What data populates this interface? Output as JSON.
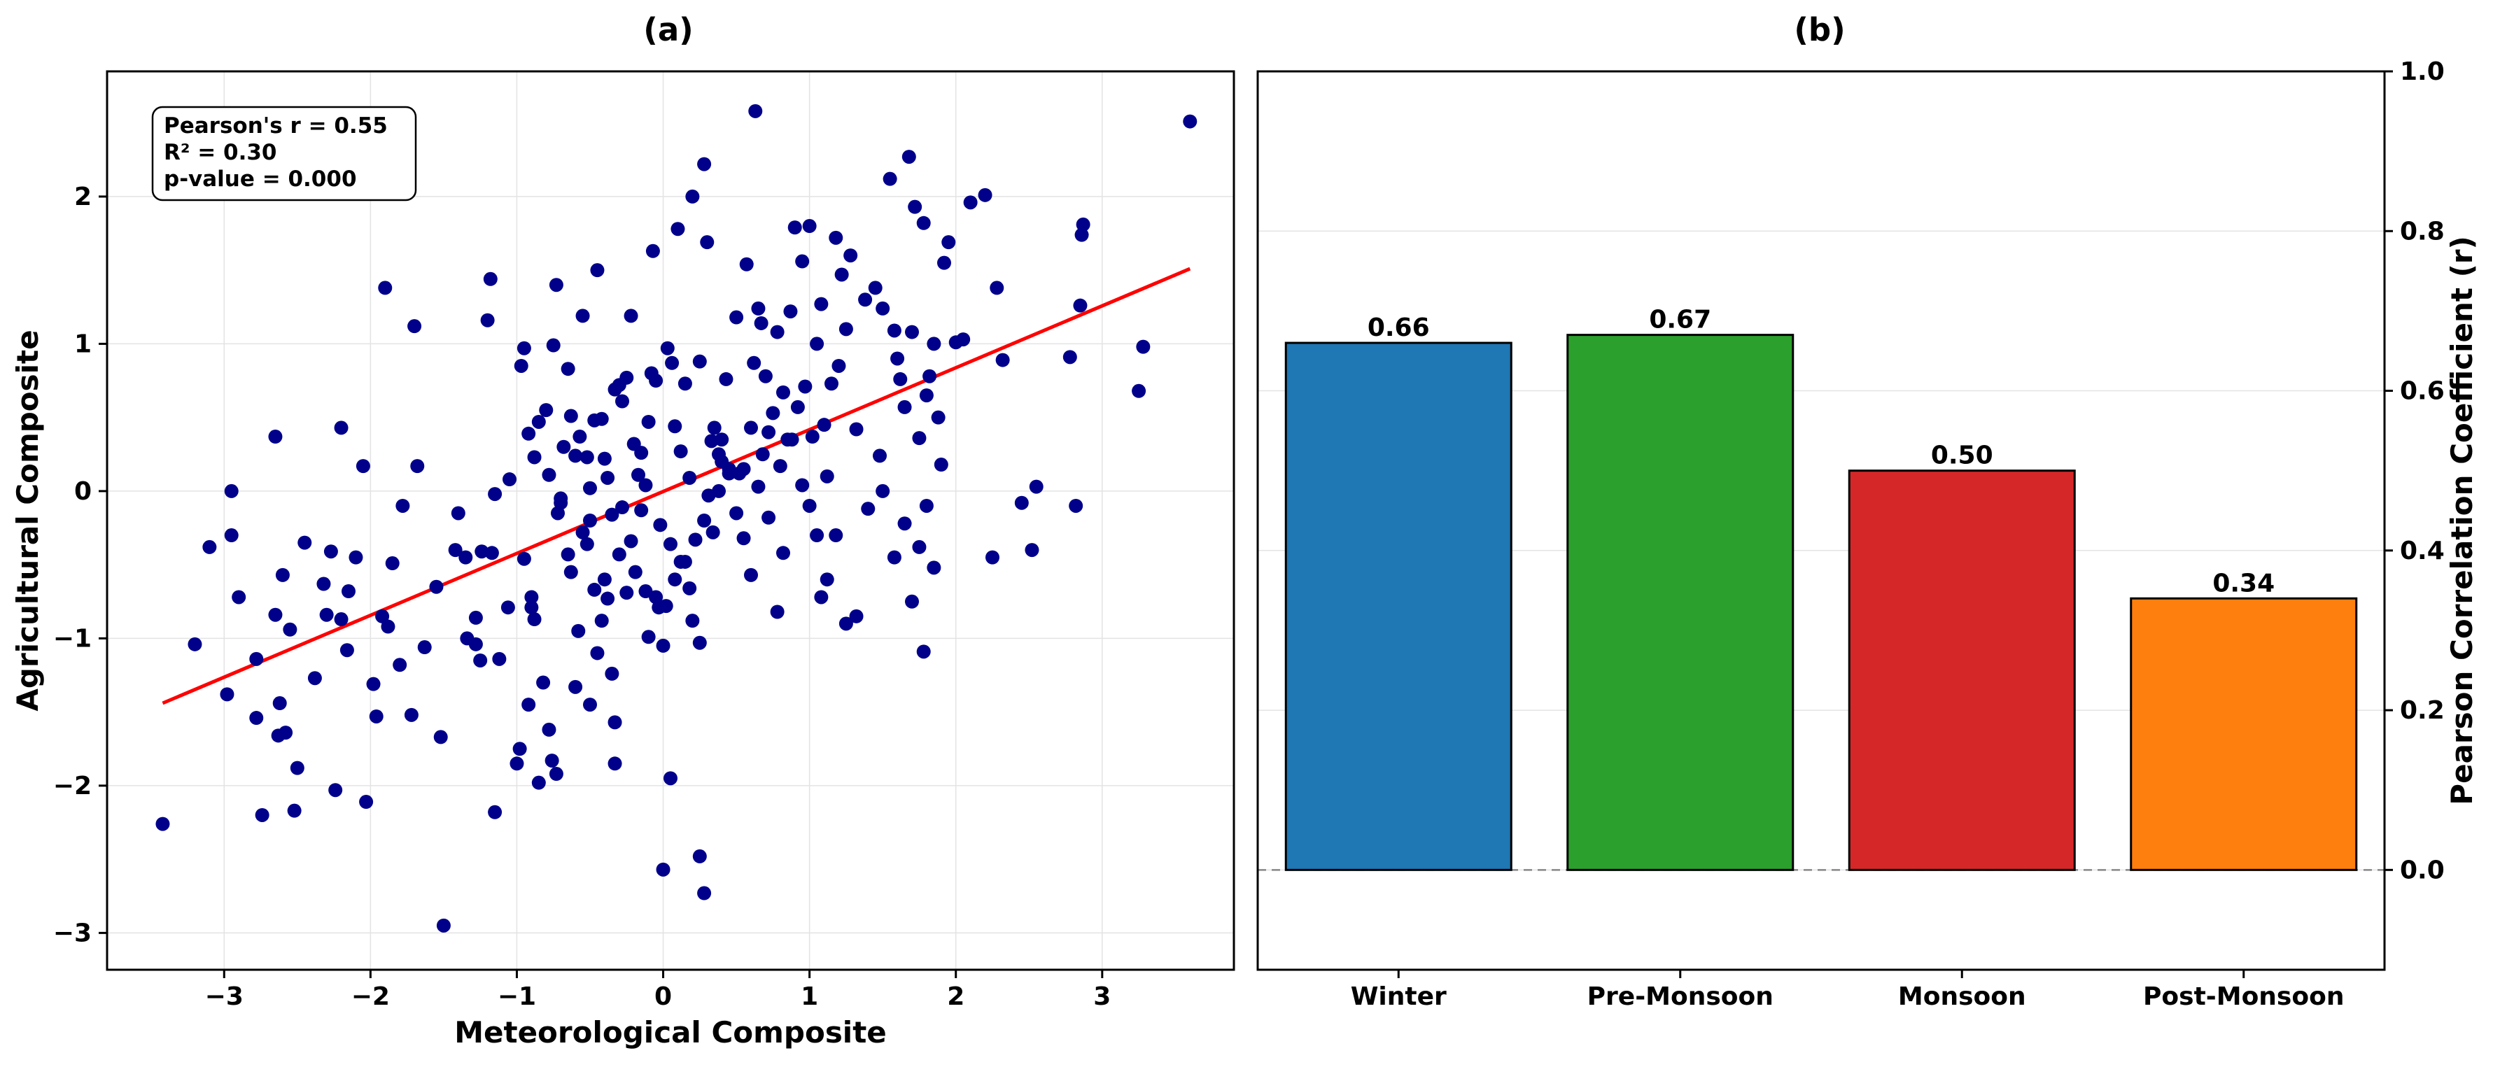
{
  "chart_data": [
    {
      "type": "scatter",
      "title": "(a)",
      "xlabel": "Meteorological Composite",
      "ylabel": "Agricultural Composite",
      "xlim": [
        -3.8,
        3.9
      ],
      "ylim": [
        -3.25,
        2.85
      ],
      "xticks": [
        -3,
        -2,
        -1,
        0,
        1,
        2,
        3
      ],
      "yticks": [
        -3,
        -2,
        -1,
        0,
        1,
        2
      ],
      "grid": true,
      "point_color": "#00008b",
      "fit_color": "#ff0000",
      "fit_line": {
        "x": [
          -3.42,
          3.6
        ],
        "y": [
          -1.44,
          1.51
        ]
      },
      "stats": {
        "r_text": "Pearson's r = 0.55",
        "r2_text": "R² = 0.30",
        "p_text": "p-value = 0.000"
      },
      "points": [
        [
          -3.42,
          -2.26
        ],
        [
          -3.2,
          -1.04
        ],
        [
          -3.1,
          -0.38
        ],
        [
          -2.95,
          -0.3
        ],
        [
          -2.98,
          -1.38
        ],
        [
          -2.9,
          -0.72
        ],
        [
          -2.78,
          -1.14
        ],
        [
          -2.78,
          -1.54
        ],
        [
          -2.74,
          -2.2
        ],
        [
          -2.65,
          -0.84
        ],
        [
          -2.62,
          -1.44
        ],
        [
          -2.63,
          -1.66
        ],
        [
          -2.6,
          -0.57
        ],
        [
          -2.58,
          -1.64
        ],
        [
          -2.55,
          -0.94
        ],
        [
          -2.52,
          -2.17
        ],
        [
          -2.45,
          -0.35
        ],
        [
          -2.5,
          -1.88
        ],
        [
          -2.38,
          -1.27
        ],
        [
          -2.32,
          -0.63
        ],
        [
          -2.3,
          -0.84
        ],
        [
          -2.27,
          -0.41
        ],
        [
          -2.24,
          -2.03
        ],
        [
          -2.2,
          -0.87
        ],
        [
          -2.15,
          -0.68
        ],
        [
          -2.16,
          -1.08
        ],
        [
          -2.1,
          -0.45
        ],
        [
          -2.03,
          -2.11
        ],
        [
          -1.98,
          -1.31
        ],
        [
          -1.96,
          -1.53
        ],
        [
          -1.92,
          -0.85
        ],
        [
          -1.88,
          -0.92
        ],
        [
          -1.85,
          -0.49
        ],
        [
          -1.8,
          -1.18
        ],
        [
          -1.72,
          -1.52
        ],
        [
          -1.63,
          -1.06
        ],
        [
          -1.55,
          -0.65
        ],
        [
          -1.52,
          -1.67
        ],
        [
          -1.4,
          -0.15
        ],
        [
          -1.34,
          -1.0
        ],
        [
          -1.28,
          -0.86
        ],
        [
          -1.25,
          -1.15
        ],
        [
          -1.24,
          -0.41
        ],
        [
          -1.17,
          -0.42
        ],
        [
          -1.12,
          -1.14
        ],
        [
          -1.06,
          -0.79
        ],
        [
          -0.98,
          -1.75
        ],
        [
          -0.95,
          -0.46
        ],
        [
          -0.92,
          -1.45
        ],
        [
          -0.9,
          -0.72
        ],
        [
          -0.9,
          -0.79
        ],
        [
          -0.88,
          -0.87
        ],
        [
          -0.82,
          -1.3
        ],
        [
          -0.78,
          -1.62
        ],
        [
          -0.76,
          -1.83
        ],
        [
          -0.73,
          -1.92
        ],
        [
          -0.72,
          -0.15
        ],
        [
          -0.7,
          -0.05
        ],
        [
          -0.65,
          -0.43
        ],
        [
          -0.63,
          -0.55
        ],
        [
          -0.6,
          -1.33
        ],
        [
          -0.58,
          -0.95
        ],
        [
          -0.55,
          -0.28
        ],
        [
          -0.52,
          -0.36
        ],
        [
          -0.5,
          -0.2
        ],
        [
          -0.47,
          -0.67
        ],
        [
          -0.45,
          -1.1
        ],
        [
          -0.42,
          -0.88
        ],
        [
          -0.4,
          -0.6
        ],
        [
          -0.38,
          -0.73
        ],
        [
          -0.35,
          -1.24
        ],
        [
          -0.33,
          -1.57
        ],
        [
          -0.3,
          -0.43
        ],
        [
          -0.28,
          -0.11
        ],
        [
          -0.25,
          -0.69
        ],
        [
          -0.22,
          -0.34
        ],
        [
          -0.19,
          -0.55
        ],
        [
          -0.15,
          -0.13
        ],
        [
          -0.12,
          -0.68
        ],
        [
          -0.1,
          -0.99
        ],
        [
          -0.05,
          -0.72
        ],
        [
          -0.03,
          -0.79
        ],
        [
          0.0,
          -1.05
        ],
        [
          0.02,
          -0.78
        ],
        [
          0.05,
          -0.36
        ],
        [
          0.08,
          -0.6
        ],
        [
          0.12,
          -0.48
        ],
        [
          0.15,
          -0.48
        ],
        [
          0.18,
          -0.66
        ],
        [
          0.2,
          -0.88
        ],
        [
          0.22,
          -0.33
        ],
        [
          0.25,
          -1.03
        ],
        [
          0.28,
          -0.2
        ],
        [
          0.31,
          -0.03
        ],
        [
          0.34,
          -0.28
        ],
        [
          0.38,
          0.0
        ],
        [
          0.4,
          0.35
        ],
        [
          0.45,
          0.12
        ],
        [
          0.5,
          -0.15
        ],
        [
          0.55,
          -0.32
        ],
        [
          0.6,
          -0.57
        ],
        [
          0.65,
          0.03
        ],
        [
          0.72,
          -0.18
        ],
        [
          0.78,
          -0.82
        ],
        [
          0.82,
          -0.42
        ],
        [
          0.88,
          0.35
        ],
        [
          0.95,
          0.04
        ],
        [
          1.0,
          -0.1
        ],
        [
          1.05,
          -0.3
        ],
        [
          1.08,
          -0.72
        ],
        [
          1.12,
          -0.6
        ],
        [
          1.18,
          -0.3
        ],
        [
          1.25,
          -0.9
        ],
        [
          1.32,
          -0.85
        ],
        [
          1.4,
          -0.12
        ],
        [
          1.5,
          0.0
        ],
        [
          1.58,
          -0.45
        ],
        [
          1.65,
          -0.22
        ],
        [
          1.7,
          -0.75
        ],
        [
          1.75,
          -0.38
        ],
        [
          1.78,
          -1.09
        ],
        [
          1.8,
          -0.1
        ],
        [
          1.85,
          -0.52
        ],
        [
          1.9,
          0.18
        ],
        [
          -1.28,
          -1.04
        ],
        [
          -1.15,
          -2.18
        ],
        [
          -1.0,
          -1.85
        ],
        [
          -0.85,
          -1.98
        ],
        [
          -0.5,
          -1.45
        ],
        [
          -0.33,
          -1.85
        ],
        [
          0.05,
          -1.95
        ],
        [
          0.0,
          -2.57
        ],
        [
          0.25,
          -2.48
        ],
        [
          0.28,
          -2.73
        ],
        [
          -1.5,
          -2.95
        ],
        [
          -2.95,
          0.0
        ],
        [
          -2.65,
          0.37
        ],
        [
          -2.2,
          0.43
        ],
        [
          -2.05,
          0.17
        ],
        [
          -1.9,
          1.38
        ],
        [
          -1.7,
          1.12
        ],
        [
          -1.68,
          0.17
        ],
        [
          -1.78,
          -0.1
        ],
        [
          -1.42,
          -0.4
        ],
        [
          -1.35,
          -0.45
        ],
        [
          -1.2,
          1.16
        ],
        [
          -1.18,
          1.44
        ],
        [
          -1.15,
          -0.02
        ],
        [
          -1.05,
          0.08
        ],
        [
          -0.97,
          0.85
        ],
        [
          -0.95,
          0.97
        ],
        [
          -0.92,
          0.39
        ],
        [
          -0.88,
          0.23
        ],
        [
          -0.85,
          0.47
        ],
        [
          -0.8,
          0.55
        ],
        [
          -0.78,
          0.11
        ],
        [
          -0.75,
          0.99
        ],
        [
          -0.73,
          1.4
        ],
        [
          -0.7,
          -0.08
        ],
        [
          -0.68,
          0.3
        ],
        [
          -0.65,
          0.83
        ],
        [
          -0.63,
          0.51
        ],
        [
          -0.6,
          0.24
        ],
        [
          -0.57,
          0.37
        ],
        [
          -0.55,
          1.19
        ],
        [
          -0.52,
          0.23
        ],
        [
          -0.5,
          0.02
        ],
        [
          -0.47,
          0.48
        ],
        [
          -0.45,
          1.5
        ],
        [
          -0.42,
          0.49
        ],
        [
          -0.4,
          0.22
        ],
        [
          -0.38,
          0.09
        ],
        [
          -0.35,
          -0.16
        ],
        [
          -0.33,
          0.69
        ],
        [
          -0.3,
          0.72
        ],
        [
          -0.28,
          0.61
        ],
        [
          -0.25,
          0.77
        ],
        [
          -0.22,
          1.19
        ],
        [
          -0.2,
          0.32
        ],
        [
          -0.17,
          0.11
        ],
        [
          -0.15,
          0.26
        ],
        [
          -0.12,
          0.04
        ],
        [
          -0.1,
          0.47
        ],
        [
          -0.08,
          0.8
        ],
        [
          -0.05,
          0.75
        ],
        [
          -0.07,
          1.63
        ],
        [
          -0.02,
          -0.23
        ],
        [
          0.03,
          0.97
        ],
        [
          0.06,
          0.87
        ],
        [
          0.08,
          0.44
        ],
        [
          0.1,
          1.78
        ],
        [
          0.12,
          0.27
        ],
        [
          0.15,
          0.73
        ],
        [
          0.18,
          0.09
        ],
        [
          0.2,
          2.0
        ],
        [
          0.25,
          0.88
        ],
        [
          0.28,
          2.22
        ],
        [
          0.3,
          1.69
        ],
        [
          0.33,
          0.34
        ],
        [
          0.35,
          0.43
        ],
        [
          0.38,
          0.25
        ],
        [
          0.4,
          0.2
        ],
        [
          0.43,
          0.76
        ],
        [
          0.45,
          0.15
        ],
        [
          0.5,
          1.18
        ],
        [
          0.52,
          0.12
        ],
        [
          0.55,
          0.15
        ],
        [
          0.57,
          1.54
        ],
        [
          0.6,
          0.43
        ],
        [
          0.62,
          0.87
        ],
        [
          0.63,
          2.58
        ],
        [
          0.65,
          1.24
        ],
        [
          0.67,
          1.14
        ],
        [
          0.68,
          0.25
        ],
        [
          0.7,
          0.78
        ],
        [
          0.72,
          0.4
        ],
        [
          0.75,
          0.53
        ],
        [
          0.78,
          1.08
        ],
        [
          0.8,
          0.17
        ],
        [
          0.82,
          0.67
        ],
        [
          0.85,
          0.35
        ],
        [
          0.87,
          1.22
        ],
        [
          0.9,
          1.79
        ],
        [
          0.92,
          0.57
        ],
        [
          0.95,
          1.56
        ],
        [
          0.97,
          0.71
        ],
        [
          1.0,
          1.8
        ],
        [
          1.02,
          0.37
        ],
        [
          1.05,
          1.0
        ],
        [
          1.08,
          1.27
        ],
        [
          1.1,
          0.45
        ],
        [
          1.12,
          0.1
        ],
        [
          1.15,
          0.73
        ],
        [
          1.18,
          1.72
        ],
        [
          1.2,
          0.85
        ],
        [
          1.22,
          1.47
        ],
        [
          1.25,
          1.1
        ],
        [
          1.28,
          1.6
        ],
        [
          1.32,
          0.42
        ],
        [
          1.38,
          1.3
        ],
        [
          1.45,
          1.38
        ],
        [
          1.48,
          0.24
        ],
        [
          1.5,
          1.24
        ],
        [
          1.55,
          2.12
        ],
        [
          1.58,
          1.09
        ],
        [
          1.6,
          0.9
        ],
        [
          1.62,
          0.76
        ],
        [
          1.65,
          0.57
        ],
        [
          1.68,
          2.27
        ],
        [
          1.7,
          1.08
        ],
        [
          1.72,
          1.93
        ],
        [
          1.75,
          0.36
        ],
        [
          1.78,
          1.82
        ],
        [
          1.8,
          0.65
        ],
        [
          1.82,
          0.78
        ],
        [
          1.85,
          1.0
        ],
        [
          1.88,
          0.5
        ],
        [
          1.92,
          1.55
        ],
        [
          1.95,
          1.69
        ],
        [
          2.0,
          1.01
        ],
        [
          2.05,
          1.03
        ],
        [
          2.1,
          1.96
        ],
        [
          2.2,
          2.01
        ],
        [
          2.28,
          1.38
        ],
        [
          2.32,
          0.89
        ],
        [
          2.25,
          -0.45
        ],
        [
          2.45,
          -0.08
        ],
        [
          2.52,
          -0.4
        ],
        [
          2.55,
          0.03
        ],
        [
          2.78,
          0.91
        ],
        [
          2.82,
          -0.1
        ],
        [
          2.85,
          1.26
        ],
        [
          2.87,
          1.81
        ],
        [
          2.86,
          1.74
        ],
        [
          3.25,
          0.68
        ],
        [
          3.28,
          0.98
        ],
        [
          3.6,
          2.51
        ]
      ]
    },
    {
      "type": "bar",
      "title": "(b)",
      "xlabel": "",
      "ylabel": "Pearson Correlation Coefficient (r)",
      "ylim": [
        -0.125,
        1.0
      ],
      "yticks": [
        0.0,
        0.2,
        0.4,
        0.6,
        0.8,
        1.0
      ],
      "ytick_labels": [
        "0.0",
        "0.2",
        "0.4",
        "0.6",
        "0.8",
        "1.0"
      ],
      "yaxis_side": "right",
      "grid": true,
      "zero_line": true,
      "categories": [
        "Winter",
        "Pre-Monsoon",
        "Monsoon",
        "Post-Monsoon"
      ],
      "values": [
        0.66,
        0.67,
        0.5,
        0.34
      ],
      "value_labels": [
        "0.66",
        "0.67",
        "0.50",
        "0.34"
      ],
      "colors": [
        "#1f77b4",
        "#2ca02c",
        "#d62728",
        "#ff7f0e"
      ]
    }
  ]
}
